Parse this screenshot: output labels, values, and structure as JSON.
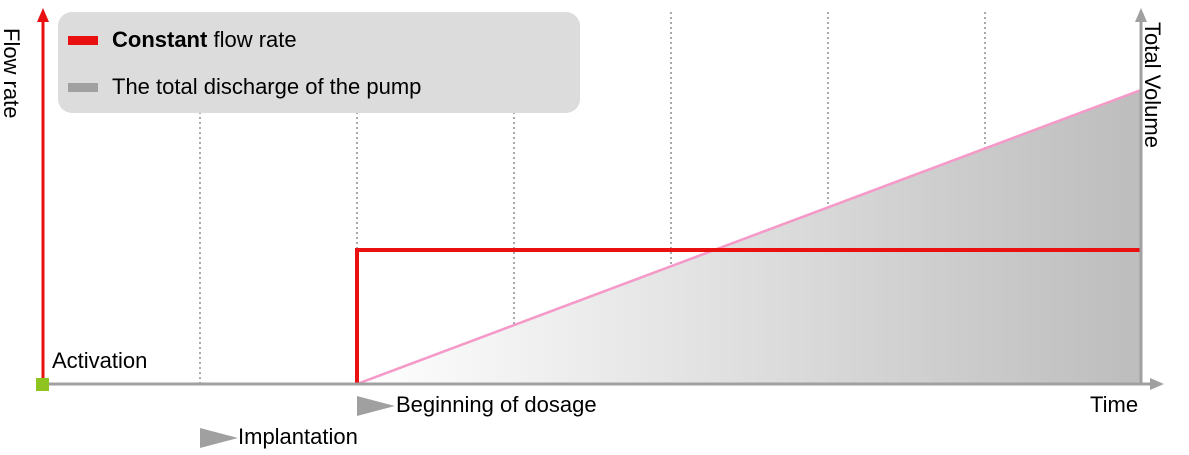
{
  "legend": [
    {
      "bold": "Constant",
      "text": "flow rate"
    },
    {
      "text": "The total discharge of the pump"
    }
  ],
  "axes": {
    "y_left": "Flow rate",
    "y_right": "Total Volume",
    "x": "Time"
  },
  "markers": {
    "activation": "Activation",
    "dosage": "Beginning of dosage",
    "implantation": "Implantation"
  }
}
